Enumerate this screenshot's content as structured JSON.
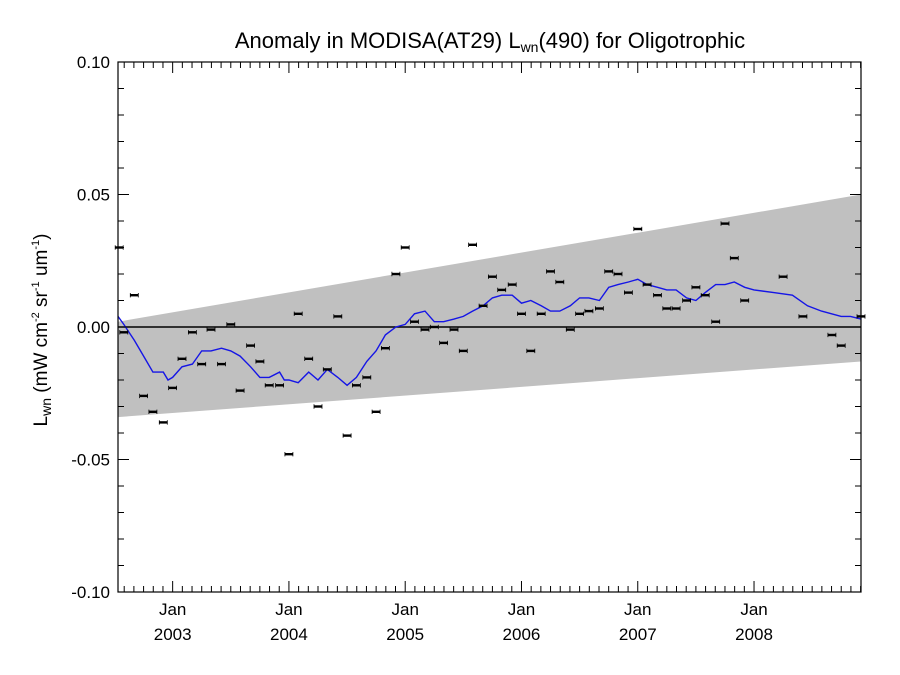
{
  "chart_data": {
    "type": "scatter",
    "title": {
      "prefix": "Anomaly in MODISA(AT29) L",
      "sub": "wn",
      "suffix": "(490) for Oligotrophic"
    },
    "ylabel": {
      "main": "L",
      "main_sub": "wn",
      "units_parts": [
        {
          "t": " (mW cm",
          "sup": "-2"
        },
        {
          "t": " sr",
          "sup": "-1"
        },
        {
          "t": " um",
          "sup": "-1"
        },
        {
          "t": ")",
          "sup": ""
        }
      ]
    },
    "xlim": [
      2002.53,
      2008.92
    ],
    "ylim": [
      -0.1,
      0.1
    ],
    "y_ticks": [
      "-0.10",
      "-0.05",
      "0.00",
      "0.05",
      "0.10"
    ],
    "y_tick_values": [
      -0.1,
      -0.05,
      0.0,
      0.05,
      0.1
    ],
    "x_ticks": [
      {
        "month": "Jan",
        "year": "2003",
        "x": 2003.0
      },
      {
        "month": "Jan",
        "year": "2004",
        "x": 2004.0
      },
      {
        "month": "Jan",
        "year": "2005",
        "x": 2005.0
      },
      {
        "month": "Jan",
        "year": "2006",
        "x": 2006.0
      },
      {
        "month": "Jan",
        "year": "2007",
        "x": 2007.0
      },
      {
        "month": "Jan",
        "year": "2008",
        "x": 2008.0
      }
    ],
    "zero_line": 0.0,
    "colors": {
      "band": "#c0c0c0",
      "smooth_line": "#1515e6",
      "points": "#000000",
      "axes": "#000000"
    },
    "uncertainty_band": {
      "x": [
        2002.53,
        2008.92
      ],
      "upper": [
        0.002,
        0.05
      ],
      "lower": [
        -0.034,
        -0.013
      ]
    },
    "series": [
      {
        "type": "scatter",
        "points": [
          [
            2002.54,
            0.03
          ],
          [
            2002.58,
            -0.002
          ],
          [
            2002.67,
            0.012
          ],
          [
            2002.75,
            -0.026
          ],
          [
            2002.83,
            -0.032
          ],
          [
            2002.92,
            -0.036
          ],
          [
            2003.0,
            -0.023
          ],
          [
            2003.08,
            -0.012
          ],
          [
            2003.17,
            -0.002
          ],
          [
            2003.25,
            -0.014
          ],
          [
            2003.33,
            -0.001
          ],
          [
            2003.42,
            -0.014
          ],
          [
            2003.5,
            0.001
          ],
          [
            2003.58,
            -0.024
          ],
          [
            2003.67,
            -0.007
          ],
          [
            2003.75,
            -0.013
          ],
          [
            2003.83,
            -0.022
          ],
          [
            2003.92,
            -0.022
          ],
          [
            2004.0,
            -0.048
          ],
          [
            2004.08,
            0.005
          ],
          [
            2004.17,
            -0.012
          ],
          [
            2004.25,
            -0.03
          ],
          [
            2004.33,
            -0.016
          ],
          [
            2004.42,
            0.004
          ],
          [
            2004.5,
            -0.041
          ],
          [
            2004.58,
            -0.022
          ],
          [
            2004.67,
            -0.019
          ],
          [
            2004.75,
            -0.032
          ],
          [
            2004.83,
            -0.008
          ],
          [
            2004.92,
            0.02
          ],
          [
            2005.0,
            0.03
          ],
          [
            2005.08,
            0.002
          ],
          [
            2005.17,
            -0.001
          ],
          [
            2005.25,
            0.0
          ],
          [
            2005.33,
            -0.006
          ],
          [
            2005.42,
            -0.001
          ],
          [
            2005.5,
            -0.009
          ],
          [
            2005.58,
            0.031
          ],
          [
            2005.67,
            0.008
          ],
          [
            2005.75,
            0.019
          ],
          [
            2005.83,
            0.014
          ],
          [
            2005.92,
            0.016
          ],
          [
            2006.0,
            0.005
          ],
          [
            2006.08,
            -0.009
          ],
          [
            2006.17,
            0.005
          ],
          [
            2006.25,
            0.021
          ],
          [
            2006.33,
            0.017
          ],
          [
            2006.42,
            -0.001
          ],
          [
            2006.5,
            0.005
          ],
          [
            2006.58,
            0.006
          ],
          [
            2006.67,
            0.007
          ],
          [
            2006.75,
            0.021
          ],
          [
            2006.83,
            0.02
          ],
          [
            2006.92,
            0.013
          ],
          [
            2007.0,
            0.037
          ],
          [
            2007.08,
            0.016
          ],
          [
            2007.17,
            0.012
          ],
          [
            2007.25,
            0.007
          ],
          [
            2007.33,
            0.007
          ],
          [
            2007.42,
            0.01
          ],
          [
            2007.5,
            0.015
          ],
          [
            2007.58,
            0.012
          ],
          [
            2007.67,
            0.002
          ],
          [
            2007.75,
            0.039
          ],
          [
            2007.83,
            0.026
          ],
          [
            2007.92,
            0.01
          ],
          [
            2008.25,
            0.019
          ],
          [
            2008.42,
            0.004
          ],
          [
            2008.67,
            -0.003
          ],
          [
            2008.75,
            -0.007
          ],
          [
            2008.92,
            0.004
          ]
        ]
      },
      {
        "type": "line",
        "points": [
          [
            2002.53,
            0.004
          ],
          [
            2002.58,
            0.001
          ],
          [
            2002.67,
            -0.005
          ],
          [
            2002.75,
            -0.011
          ],
          [
            2002.83,
            -0.017
          ],
          [
            2002.92,
            -0.017
          ],
          [
            2002.96,
            -0.02
          ],
          [
            2003.0,
            -0.019
          ],
          [
            2003.08,
            -0.015
          ],
          [
            2003.17,
            -0.014
          ],
          [
            2003.25,
            -0.009
          ],
          [
            2003.33,
            -0.009
          ],
          [
            2003.42,
            -0.008
          ],
          [
            2003.5,
            -0.009
          ],
          [
            2003.58,
            -0.011
          ],
          [
            2003.67,
            -0.015
          ],
          [
            2003.75,
            -0.019
          ],
          [
            2003.83,
            -0.019
          ],
          [
            2003.92,
            -0.017
          ],
          [
            2003.96,
            -0.02
          ],
          [
            2004.0,
            -0.02
          ],
          [
            2004.08,
            -0.021
          ],
          [
            2004.17,
            -0.017
          ],
          [
            2004.25,
            -0.02
          ],
          [
            2004.33,
            -0.016
          ],
          [
            2004.42,
            -0.019
          ],
          [
            2004.5,
            -0.022
          ],
          [
            2004.58,
            -0.019
          ],
          [
            2004.67,
            -0.013
          ],
          [
            2004.75,
            -0.009
          ],
          [
            2004.83,
            -0.003
          ],
          [
            2004.92,
            0.0
          ],
          [
            2005.0,
            0.001
          ],
          [
            2005.08,
            0.005
          ],
          [
            2005.17,
            0.006
          ],
          [
            2005.25,
            0.002
          ],
          [
            2005.33,
            0.002
          ],
          [
            2005.42,
            0.003
          ],
          [
            2005.5,
            0.004
          ],
          [
            2005.58,
            0.006
          ],
          [
            2005.67,
            0.008
          ],
          [
            2005.75,
            0.011
          ],
          [
            2005.83,
            0.012
          ],
          [
            2005.92,
            0.012
          ],
          [
            2006.0,
            0.009
          ],
          [
            2006.08,
            0.01
          ],
          [
            2006.17,
            0.008
          ],
          [
            2006.25,
            0.006
          ],
          [
            2006.33,
            0.006
          ],
          [
            2006.42,
            0.008
          ],
          [
            2006.5,
            0.011
          ],
          [
            2006.58,
            0.011
          ],
          [
            2006.67,
            0.01
          ],
          [
            2006.75,
            0.015
          ],
          [
            2006.83,
            0.016
          ],
          [
            2006.92,
            0.017
          ],
          [
            2007.0,
            0.018
          ],
          [
            2007.08,
            0.016
          ],
          [
            2007.17,
            0.015
          ],
          [
            2007.25,
            0.014
          ],
          [
            2007.33,
            0.014
          ],
          [
            2007.42,
            0.011
          ],
          [
            2007.5,
            0.01
          ],
          [
            2007.58,
            0.013
          ],
          [
            2007.67,
            0.016
          ],
          [
            2007.75,
            0.016
          ],
          [
            2007.83,
            0.017
          ],
          [
            2007.92,
            0.015
          ],
          [
            2008.0,
            0.014
          ],
          [
            2008.17,
            0.013
          ],
          [
            2008.33,
            0.012
          ],
          [
            2008.46,
            0.008
          ],
          [
            2008.58,
            0.006
          ],
          [
            2008.75,
            0.004
          ],
          [
            2008.83,
            0.004
          ],
          [
            2008.92,
            0.003
          ]
        ]
      }
    ]
  }
}
